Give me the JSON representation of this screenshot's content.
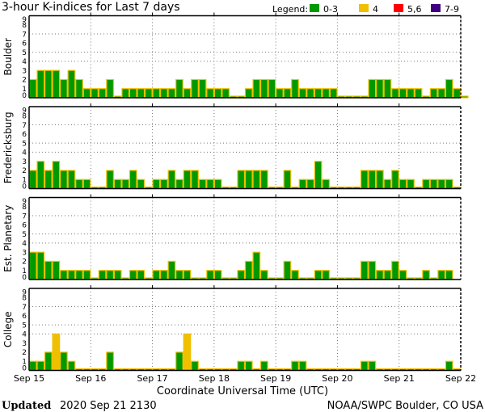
{
  "chart_data": {
    "type": "bar",
    "title": "3-hour K-indices for Last 7 days",
    "legend": {
      "label": "Legend:",
      "placement": "top-right",
      "entries": [
        {
          "label": "0-3",
          "color": "#009900"
        },
        {
          "label": "4",
          "color": "#f0c000"
        },
        {
          "label": "5,6",
          "color": "#ff0000"
        },
        {
          "label": "7-9",
          "color": "#400080"
        }
      ]
    },
    "bar_outline_color": "#f0c000",
    "xlabel": "Coordinate Universal Time (UTC)",
    "x_tick_labels": [
      "Sep 15",
      "Sep 16",
      "Sep 17",
      "Sep 18",
      "Sep 19",
      "Sep 20",
      "Sep 21",
      "Sep 22"
    ],
    "intervals_per_day": 8,
    "ylim": [
      0,
      9
    ],
    "y_tick_labels": [
      "0",
      "1",
      "2",
      "3",
      "4",
      "5",
      "6",
      "7",
      "8",
      "9"
    ],
    "grid": {
      "horizontal_at": [
        4,
        5,
        7
      ],
      "vertical_at_days": true
    },
    "panels": [
      {
        "name": "Boulder",
        "values": [
          2,
          3,
          3,
          3,
          2,
          3,
          2,
          1,
          1,
          1,
          2,
          0,
          1,
          1,
          1,
          1,
          1,
          1,
          1,
          2,
          1,
          2,
          2,
          1,
          1,
          1,
          0,
          0,
          1,
          2,
          2,
          2,
          1,
          1,
          2,
          1,
          1,
          1,
          1,
          1,
          0,
          0,
          0,
          0,
          2,
          2,
          2,
          1,
          1,
          1,
          1,
          0,
          1,
          1,
          2,
          1,
          0
        ]
      },
      {
        "name": "Fredericksburg",
        "values": [
          2,
          3,
          2,
          3,
          2,
          2,
          1,
          1,
          0,
          0,
          2,
          1,
          1,
          2,
          1,
          0,
          1,
          1,
          2,
          1,
          2,
          2,
          1,
          1,
          1,
          0,
          0,
          2,
          2,
          2,
          2,
          0,
          0,
          2,
          0,
          1,
          1,
          3,
          1,
          0,
          0,
          0,
          0,
          2,
          2,
          2,
          1,
          2,
          1,
          1,
          0,
          1,
          1,
          1,
          1,
          0
        ]
      },
      {
        "name": "Est. Planetary",
        "values": [
          3,
          3,
          2,
          2,
          1,
          1,
          1,
          1,
          0,
          1,
          1,
          1,
          0,
          1,
          1,
          0,
          1,
          1,
          2,
          1,
          1,
          0,
          0,
          1,
          1,
          0,
          0,
          1,
          2,
          3,
          1,
          0,
          0,
          2,
          1,
          0,
          0,
          1,
          1,
          0,
          0,
          0,
          0,
          2,
          2,
          1,
          1,
          2,
          1,
          0,
          0,
          1,
          0,
          1,
          1,
          null
        ]
      },
      {
        "name": "College",
        "values": [
          1,
          1,
          2,
          4,
          2,
          1,
          0,
          0,
          0,
          0,
          2,
          0,
          0,
          0,
          0,
          0,
          0,
          0,
          0,
          2,
          4,
          1,
          0,
          0,
          0,
          0,
          0,
          1,
          1,
          0,
          1,
          0,
          0,
          0,
          1,
          1,
          0,
          0,
          0,
          0,
          0,
          0,
          0,
          1,
          1,
          0,
          0,
          0,
          0,
          0,
          0,
          0,
          0,
          0,
          1,
          0
        ]
      }
    ]
  },
  "footer": {
    "updated_label": "Updated",
    "updated_value": "2020 Sep 21 2130",
    "credit": "NOAA/SWPC Boulder, CO USA"
  }
}
